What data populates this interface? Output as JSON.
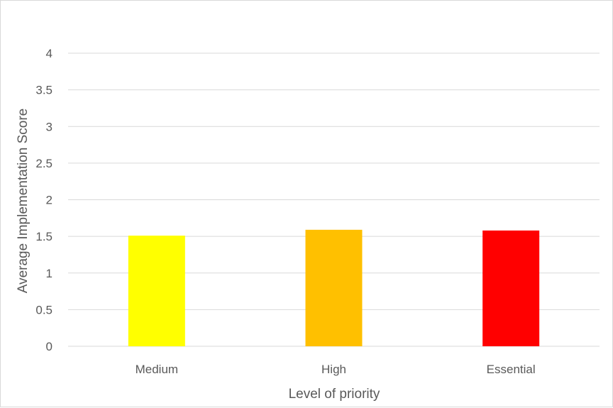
{
  "chart_data": {
    "type": "bar",
    "categories": [
      "Medium",
      "High",
      "Essential"
    ],
    "values": [
      1.51,
      1.59,
      1.58
    ],
    "colors": [
      "#FFFF00",
      "#FFC000",
      "#FF0000"
    ],
    "xlabel": "Level of priority",
    "ylabel": "Average Implementation Score",
    "ylim": [
      0,
      4
    ],
    "yticks": [
      "0",
      "0.5",
      "1",
      "1.5",
      "2",
      "2.5",
      "3",
      "3.5",
      "4"
    ],
    "grid": true,
    "gridline_color": "#d9d9d9"
  }
}
